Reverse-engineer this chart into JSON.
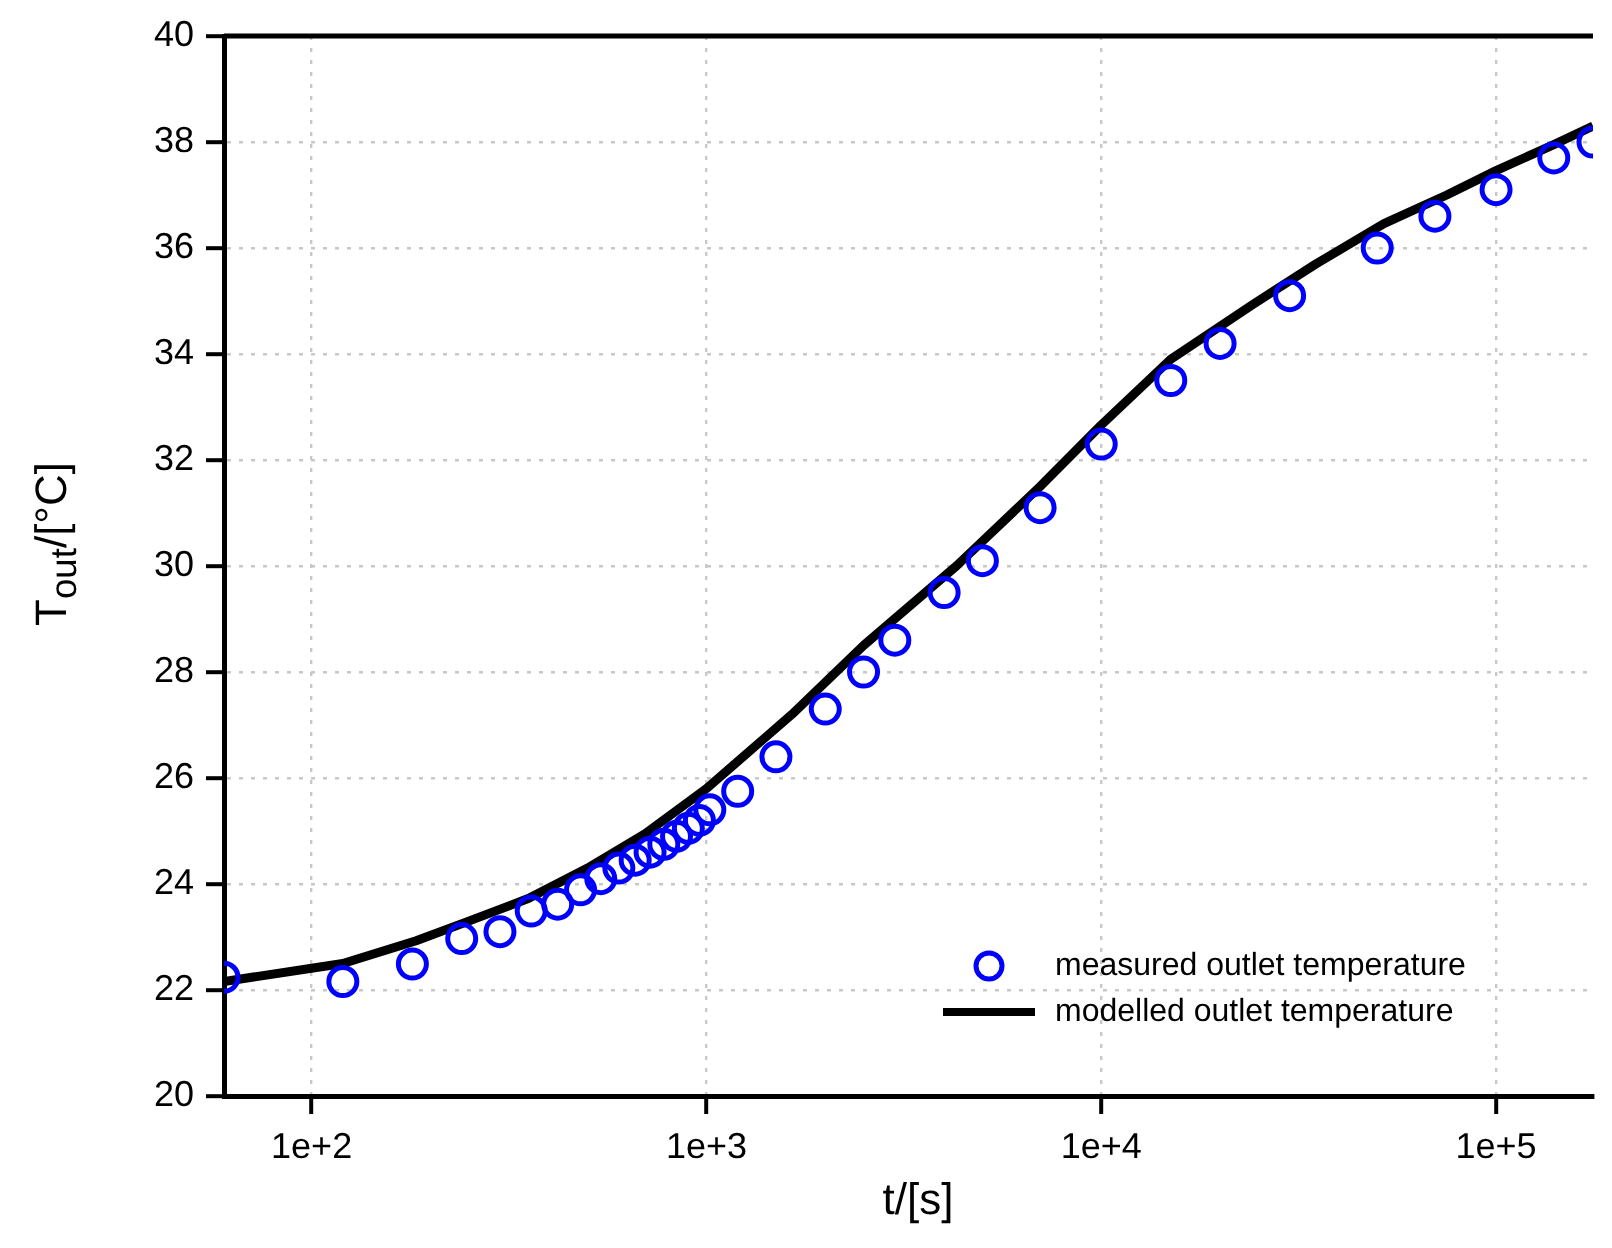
{
  "chart_data": {
    "type": "scatter",
    "xlabel": "t/[s]",
    "ylabel": "T$_{out}$/[°C]",
    "log": "x",
    "xlim": [
      60,
      176000
    ],
    "xticks": [
      {
        "value": 100,
        "label": "1e+2"
      },
      {
        "value": 1000,
        "label": "1e+3"
      },
      {
        "value": 10000,
        "label": "1e+4"
      },
      {
        "value": 100000,
        "label": "1e+5"
      }
    ],
    "ylim": [
      20,
      40
    ],
    "yticks": [
      20,
      22,
      24,
      26,
      28,
      30,
      32,
      34,
      36,
      38,
      40
    ],
    "grid": true,
    "legend": "bottom right",
    "series": [
      {
        "name": "measured outlet temperature",
        "type": "scatter",
        "marker": "circle",
        "color": "#0000ff",
        "x": [
          60,
          120,
          180,
          240,
          300,
          360,
          420,
          480,
          540,
          600,
          660,
          720,
          780,
          840,
          900,
          960,
          1020,
          1200,
          1500,
          2000,
          2500,
          3000,
          4000,
          5000,
          7000,
          10000,
          15000,
          20000,
          30000,
          50000,
          70000,
          100000,
          140000,
          176000
        ],
        "values": [
          22.24,
          22.16,
          22.49,
          22.97,
          23.1,
          23.49,
          23.62,
          23.89,
          24.1,
          24.3,
          24.45,
          24.6,
          24.75,
          24.9,
          25.05,
          25.2,
          25.4,
          25.75,
          26.4,
          27.3,
          28.0,
          28.6,
          29.5,
          30.1,
          31.1,
          32.3,
          33.5,
          34.2,
          35.1,
          36.0,
          36.6,
          37.1,
          37.7,
          38.0
        ]
      },
      {
        "name": "modelled outlet temperature",
        "type": "line",
        "marker": "none",
        "line_style": "solid",
        "color": "#000000",
        "x": [
          60,
          120,
          184,
          250,
          355,
          500,
          700,
          1000,
          1646,
          2500,
          4296,
          7000,
          10000,
          15000,
          24150,
          35000,
          52000,
          75000,
          100000,
          140000,
          176000
        ],
        "values": [
          22.16,
          22.5,
          22.93,
          23.3,
          23.73,
          24.3,
          24.95,
          25.8,
          27.2,
          28.5,
          30.0,
          31.5,
          32.66,
          33.9,
          34.93,
          35.7,
          36.46,
          37.0,
          37.46,
          37.95,
          38.3
        ]
      }
    ]
  }
}
